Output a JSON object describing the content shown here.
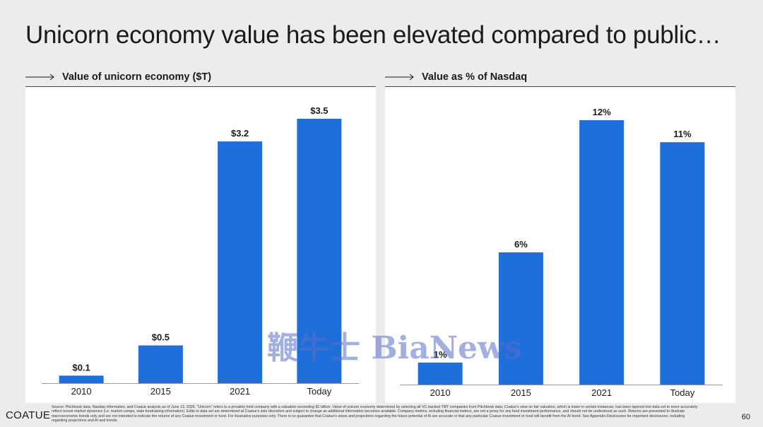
{
  "slide": {
    "title": "Unicorn economy value has been elevated compared to public…",
    "logo": "COATUE",
    "page_number": "60",
    "footnote": "Source: Pitchbook data, Nasdaq information, and Coatue analysis as of June 13, 2025. \"Unicorn\" refers to a privately held company with a valuation exceeding $1 billion. Value of unicorn economy determined by selecting all VC-backed TMT companies from Pitchbook data; Coatue's view on fair valuation, which is lower in certain instances, has been layered into data set to more accurately reflect recent market dynamics (i.e. market comps, stale fundraising information). Edits to data set are determined at Coatue's sole discretion and subject to change as additional information becomes available. Company metrics, including financial metrics, are not a proxy for any fund investment performance, and should not be understood as such. Returns are presented to illustrate macroeconomic trends only and are not intended to indicate the returns of any Coatue investment or fund. For illustrative purposes only. There is no guarantee that Coatue's views and projections regarding the future potential of AI are accurate or that any particular Coatue investment or fund will benefit from the AI trend. See Appendix-Disclosures for important disclosures, including regarding projections and AI and trends.",
    "watermark": "鞭牛士 BiaNews",
    "bar_color": "#1f6fdb"
  },
  "chart_data": [
    {
      "type": "bar",
      "title": "Value of unicorn economy ($T)",
      "categories": [
        "2010",
        "2015",
        "2021",
        "Today"
      ],
      "values": [
        0.1,
        0.5,
        3.2,
        3.5
      ],
      "labels": [
        "$0.1",
        "$0.5",
        "$3.2",
        "$3.5"
      ],
      "xlabel": "",
      "ylabel": "",
      "ylim": [
        0,
        3.5
      ],
      "grid": false
    },
    {
      "type": "bar",
      "title": "Value as % of Nasdaq",
      "categories": [
        "2010",
        "2015",
        "2021",
        "Today"
      ],
      "values": [
        1,
        6,
        12,
        11
      ],
      "labels": [
        "1%",
        "6%",
        "12%",
        "11%"
      ],
      "xlabel": "",
      "ylabel": "",
      "ylim": [
        0,
        12
      ],
      "grid": false
    }
  ]
}
